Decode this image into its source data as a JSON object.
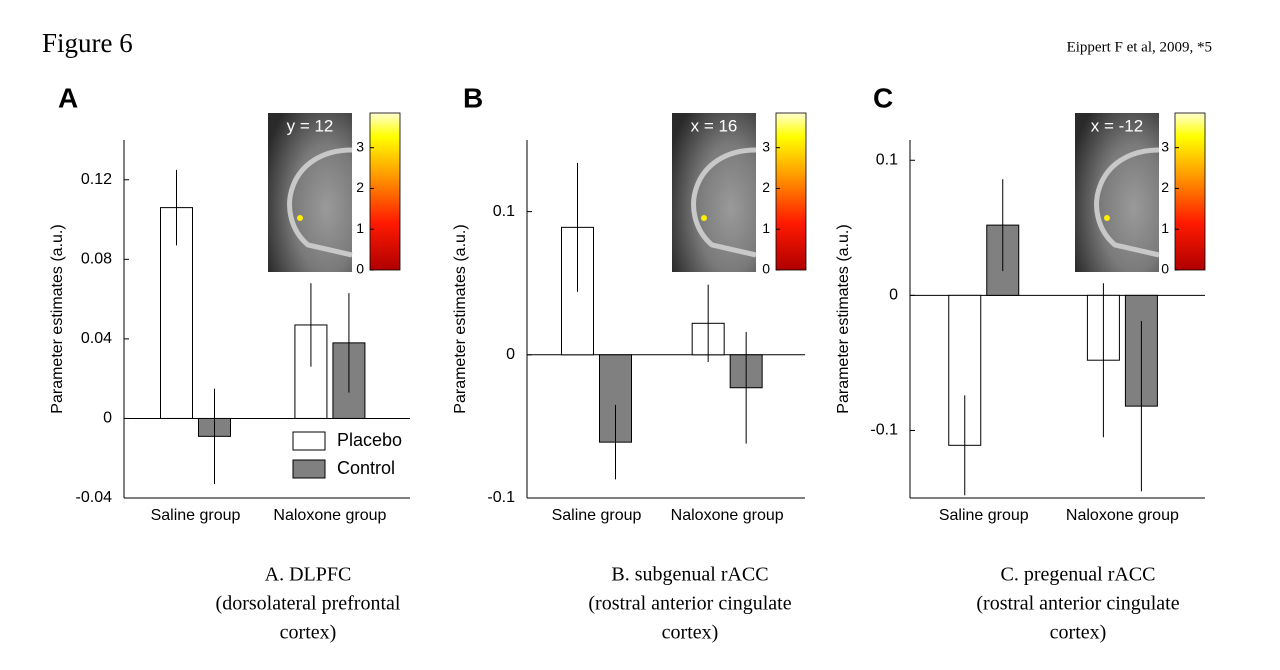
{
  "header": {
    "title": "Figure 6",
    "citation": "Eippert F et al, 2009, *5"
  },
  "chart_data": [
    {
      "type": "bar",
      "panel": "A",
      "caption": [
        "A. DLPFC",
        "(dorsolateral prefrontal",
        "cortex)"
      ],
      "ylabel": "Parameter estimates (a.u.)",
      "categories": [
        "Saline group",
        "Naloxone group"
      ],
      "series": [
        {
          "name": "Placebo",
          "color": "#ffffff",
          "values": [
            0.106,
            0.047
          ],
          "errors": [
            0.019,
            0.021
          ]
        },
        {
          "name": "Control",
          "color": "#808080",
          "values": [
            -0.009,
            0.038
          ],
          "errors": [
            0.024,
            0.025
          ]
        }
      ],
      "ylim": [
        -0.04,
        0.14
      ],
      "yticks": [
        -0.04,
        0,
        0.04,
        0.08,
        0.12
      ],
      "legend": true,
      "inset_label": "y = 12",
      "colorbar_lim": [
        0,
        3.85
      ],
      "colorbar_ticks": [
        0,
        1,
        2,
        3
      ]
    },
    {
      "type": "bar",
      "panel": "B",
      "caption": [
        "B. subgenual rACC",
        "(rostral anterior cingulate",
        "cortex)"
      ],
      "ylabel": "Parameter estimates (a.u.)",
      "categories": [
        "Saline group",
        "Naloxone group"
      ],
      "series": [
        {
          "color": "#ffffff",
          "values": [
            0.089,
            0.022
          ],
          "errors": [
            0.045,
            0.027
          ]
        },
        {
          "color": "#808080",
          "values": [
            -0.061,
            -0.023
          ],
          "errors": [
            0.026,
            0.039
          ]
        }
      ],
      "ylim": [
        -0.1,
        0.15
      ],
      "yticks": [
        -0.1,
        0,
        0.1
      ],
      "legend": false,
      "inset_label": "x = 16",
      "colorbar_lim": [
        0,
        3.85
      ],
      "colorbar_ticks": [
        0,
        1,
        2,
        3
      ]
    },
    {
      "type": "bar",
      "panel": "C",
      "caption": [
        "C. pregenual rACC",
        "(rostral anterior cingulate",
        "cortex)"
      ],
      "ylabel": "Parameter estimates (a.u.)",
      "categories": [
        "Saline group",
        "Naloxone group"
      ],
      "series": [
        {
          "color": "#ffffff",
          "values": [
            -0.111,
            -0.048
          ],
          "errors": [
            0.037,
            0.057
          ]
        },
        {
          "color": "#808080",
          "values": [
            0.052,
            -0.082
          ],
          "errors": [
            0.034,
            0.063
          ]
        }
      ],
      "ylim": [
        -0.15,
        0.115
      ],
      "yticks": [
        -0.1,
        0,
        0.1
      ],
      "legend": false,
      "inset_label": "x = -12",
      "colorbar_lim": [
        0,
        3.85
      ],
      "colorbar_ticks": [
        0,
        1,
        2,
        3
      ]
    }
  ]
}
